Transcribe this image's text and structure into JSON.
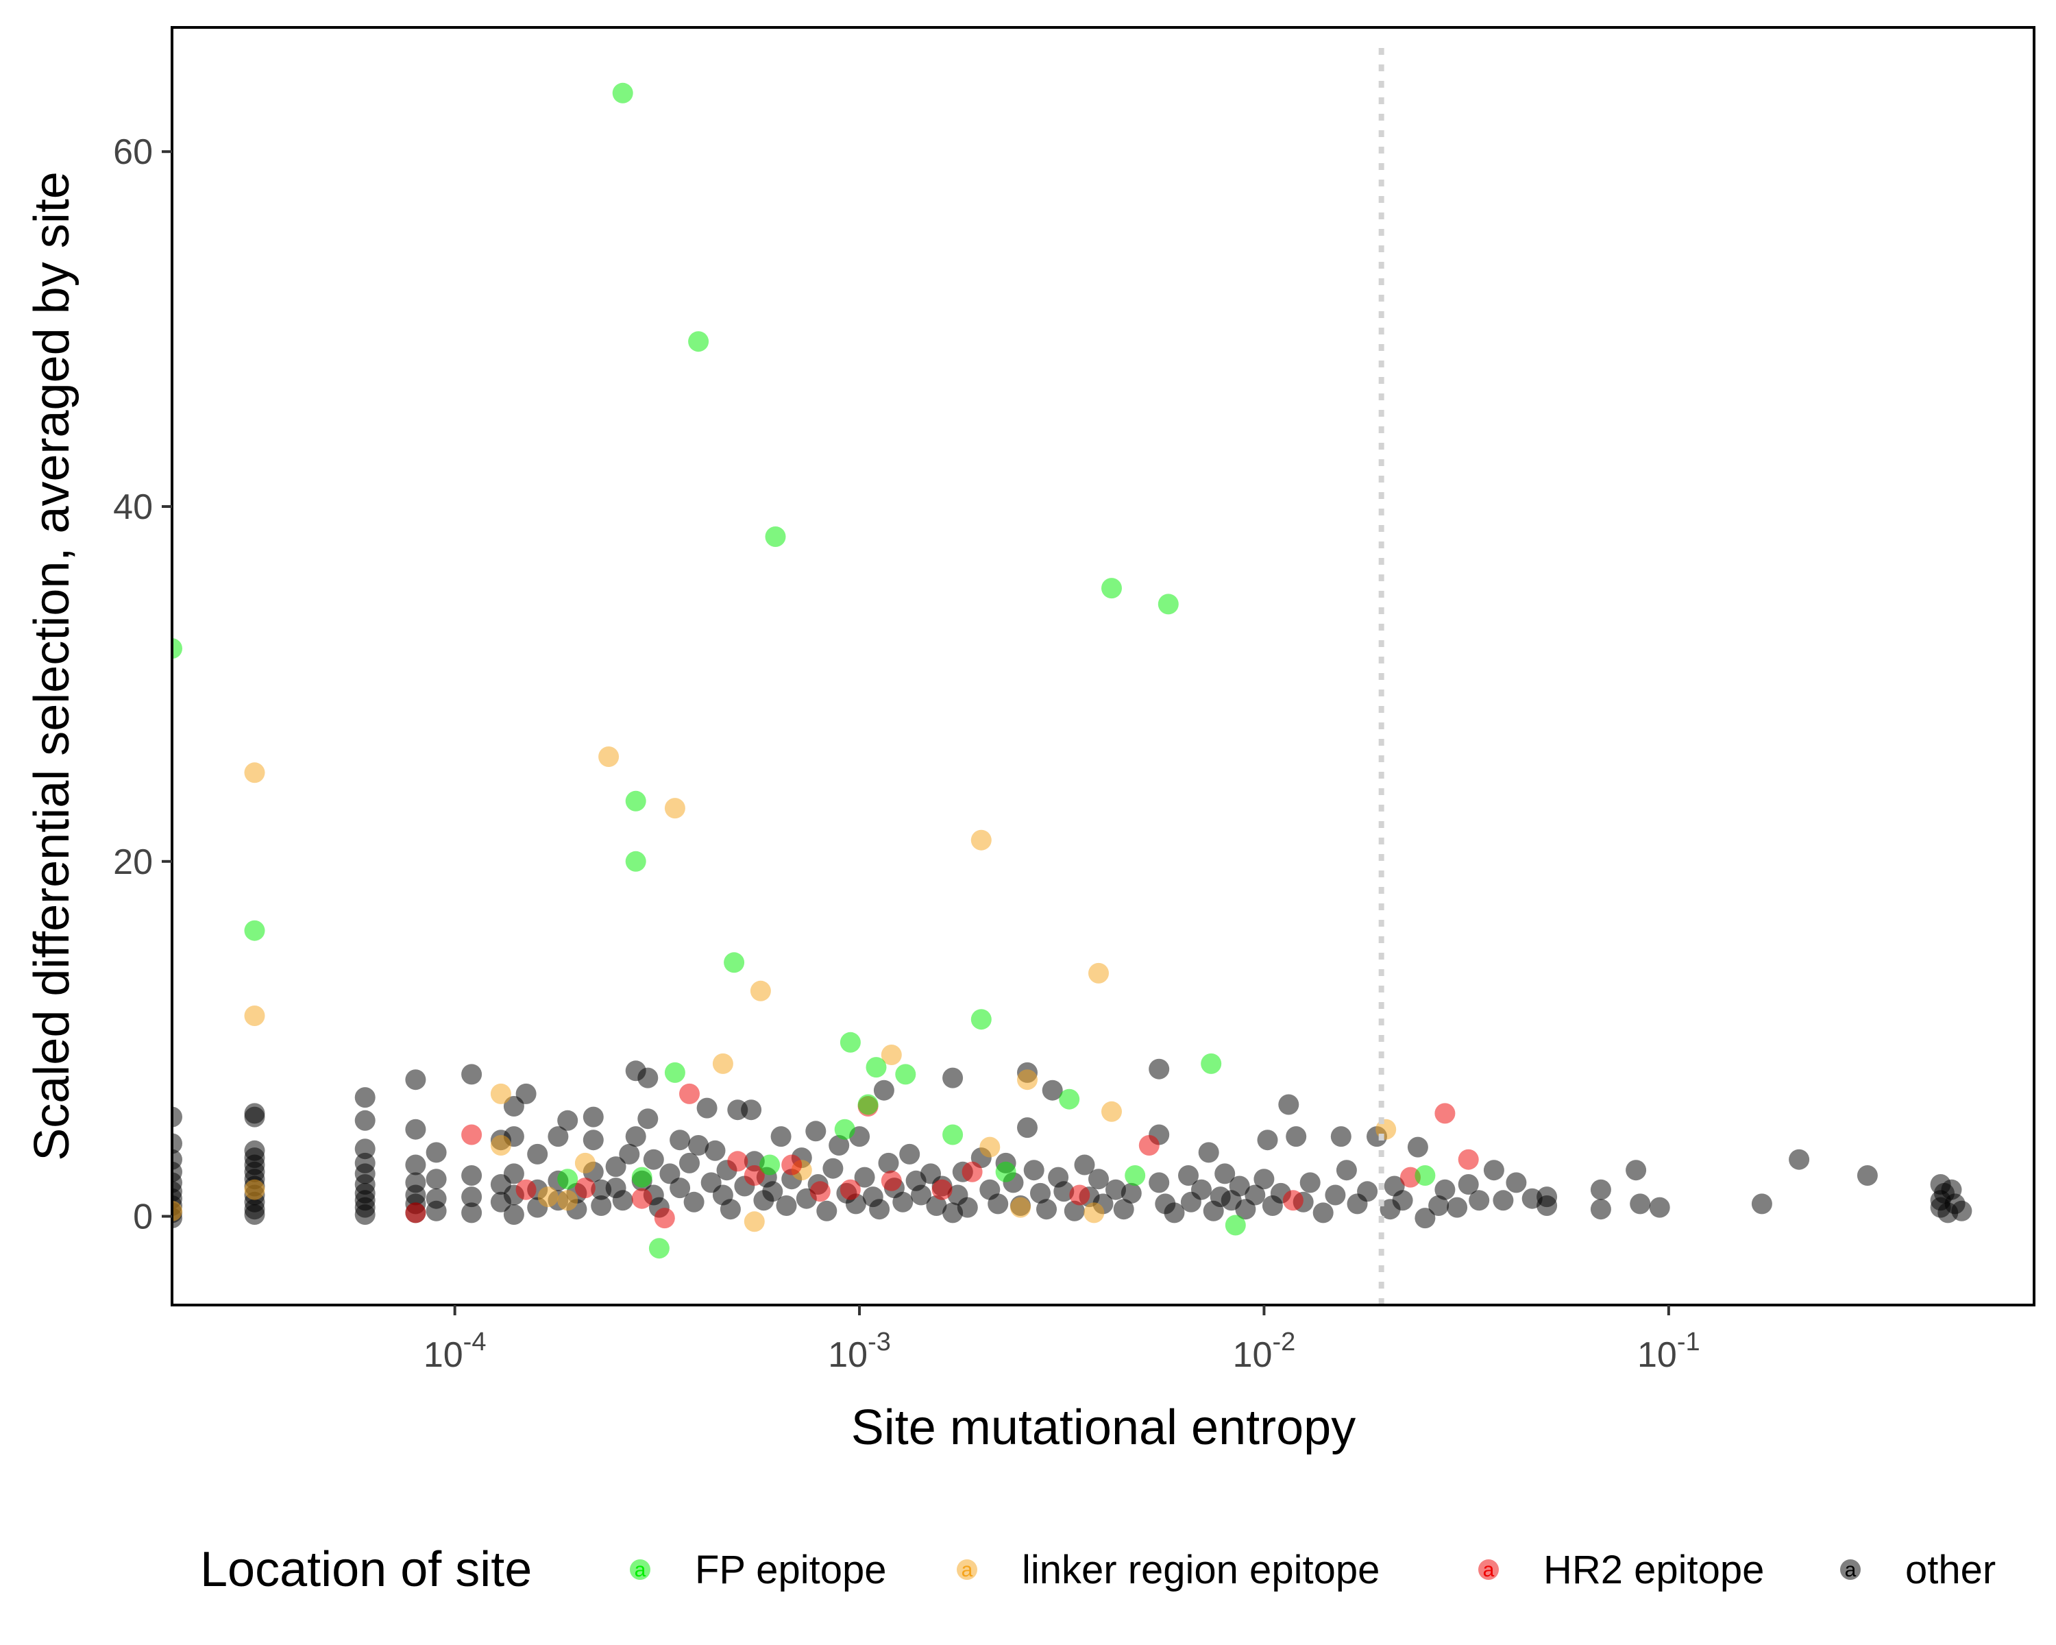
{
  "chart_data": {
    "type": "scatter",
    "xlabel": "Site mutational entropy",
    "ylabel": "Scaled differential selection, averaged by site",
    "x_scale": "log10",
    "xlim": [
      2e-05,
      0.8
    ],
    "ylim": [
      -5,
      67
    ],
    "x_ticks": [
      0.0001,
      0.001,
      0.01,
      0.1
    ],
    "x_tick_labels": [
      {
        "base": "10",
        "exp": "-4"
      },
      {
        "base": "10",
        "exp": "-3"
      },
      {
        "base": "10",
        "exp": "-2"
      },
      {
        "base": "10",
        "exp": "-1"
      }
    ],
    "y_ticks": [
      0,
      20,
      40,
      60
    ],
    "y_tick_labels": [
      "0",
      "20",
      "40",
      "60"
    ],
    "vline": {
      "x": 0.0195,
      "style": "dotted",
      "color": "#d3d3d3"
    },
    "grid": false,
    "legend": {
      "title": "Location of site",
      "position": "bottom",
      "key_glyph": "a"
    },
    "series": [
      {
        "name": "FP epitope",
        "color": "#00ee00",
        "points": [
          [
            0.00026,
            63.3
          ],
          [
            0.0004,
            49.3
          ],
          [
            0.00062,
            38.3
          ],
          [
            0.0042,
            35.4
          ],
          [
            0.0058,
            34.5
          ],
          [
            2e-05,
            32.0
          ],
          [
            0.00028,
            23.4
          ],
          [
            0.00028,
            20.0
          ],
          [
            3.2e-05,
            16.1
          ],
          [
            0.00049,
            14.3
          ],
          [
            0.002,
            11.1
          ],
          [
            0.00095,
            9.8
          ],
          [
            0.00035,
            8.1
          ],
          [
            0.0013,
            8.0
          ],
          [
            0.0074,
            8.6
          ],
          [
            0.0011,
            8.4
          ],
          [
            0.0033,
            6.6
          ],
          [
            0.00105,
            6.3
          ],
          [
            0.00092,
            4.9
          ],
          [
            0.0017,
            4.6
          ],
          [
            0.0006,
            2.9
          ],
          [
            0.00019,
            2.1
          ],
          [
            0.00029,
            2.2
          ],
          [
            0.0023,
            2.5
          ],
          [
            0.0048,
            2.3
          ],
          [
            0.025,
            2.3
          ],
          [
            0.00032,
            -1.8
          ],
          [
            0.0085,
            -0.5
          ]
        ]
      },
      {
        "name": "linker region epitope",
        "color": "#f5a31a",
        "points": [
          [
            3.2e-05,
            25.0
          ],
          [
            0.00024,
            25.9
          ],
          [
            0.00035,
            23.0
          ],
          [
            0.002,
            21.2
          ],
          [
            0.0039,
            13.7
          ],
          [
            0.00057,
            12.7
          ],
          [
            3.2e-05,
            11.3
          ],
          [
            0.0012,
            9.1
          ],
          [
            0.00046,
            8.6
          ],
          [
            0.0026,
            7.7
          ],
          [
            0.00013,
            6.9
          ],
          [
            0.0042,
            5.9
          ],
          [
            0.02,
            4.9
          ],
          [
            0.00013,
            4.0
          ],
          [
            0.0021,
            3.9
          ],
          [
            0.00021,
            3.0
          ],
          [
            2e-05,
            0.3
          ],
          [
            3.2e-05,
            1.5
          ],
          [
            0.00017,
            1.1
          ],
          [
            0.00055,
            -0.3
          ],
          [
            0.0025,
            0.5
          ],
          [
            0.00072,
            2.6
          ],
          [
            0.0038,
            0.2
          ],
          [
            0.00019,
            0.9
          ]
        ]
      },
      {
        "name": "HR2 epitope",
        "color": "#ee0000",
        "points": [
          [
            0.00038,
            6.9
          ],
          [
            0.00011,
            4.6
          ],
          [
            0.0052,
            4.0
          ],
          [
            0.028,
            5.8
          ],
          [
            0.032,
            3.2
          ],
          [
            0.023,
            2.2
          ],
          [
            0.00105,
            6.2
          ],
          [
            0.0005,
            3.1
          ],
          [
            0.00068,
            2.9
          ],
          [
            0.0008,
            1.4
          ],
          [
            0.00095,
            1.5
          ],
          [
            0.0012,
            2.0
          ],
          [
            0.0016,
            1.5
          ],
          [
            0.0019,
            2.5
          ],
          [
            0.00015,
            1.5
          ],
          [
            8e-05,
            0.2
          ],
          [
            0.00029,
            1.0
          ],
          [
            0.00055,
            2.3
          ],
          [
            0.0035,
            1.2
          ],
          [
            0.0118,
            0.9
          ],
          [
            0.00021,
            1.6
          ],
          [
            0.00033,
            -0.1
          ]
        ]
      },
      {
        "name": "other",
        "color": "#000000",
        "points": [
          [
            2e-05,
            5.6
          ],
          [
            2e-05,
            4.1
          ],
          [
            2e-05,
            3.2
          ],
          [
            2e-05,
            2.5
          ],
          [
            2e-05,
            1.9
          ],
          [
            2e-05,
            1.4
          ],
          [
            2e-05,
            1.0
          ],
          [
            2e-05,
            0.6
          ],
          [
            2e-05,
            0.2
          ],
          [
            2e-05,
            -0.1
          ],
          [
            3.2e-05,
            5.8
          ],
          [
            3.2e-05,
            5.6
          ],
          [
            3.2e-05,
            3.7
          ],
          [
            3.2e-05,
            3.3
          ],
          [
            3.2e-05,
            2.9
          ],
          [
            3.2e-05,
            2.5
          ],
          [
            3.2e-05,
            2.1
          ],
          [
            3.2e-05,
            1.7
          ],
          [
            3.2e-05,
            1.2
          ],
          [
            3.2e-05,
            0.8
          ],
          [
            3.2e-05,
            0.4
          ],
          [
            3.2e-05,
            0.1
          ],
          [
            6e-05,
            6.7
          ],
          [
            6e-05,
            5.4
          ],
          [
            6e-05,
            3.8
          ],
          [
            6e-05,
            3.0
          ],
          [
            6e-05,
            2.4
          ],
          [
            6e-05,
            1.8
          ],
          [
            6e-05,
            1.3
          ],
          [
            6e-05,
            0.9
          ],
          [
            6e-05,
            0.5
          ],
          [
            6e-05,
            0.1
          ],
          [
            8e-05,
            7.7
          ],
          [
            8e-05,
            4.9
          ],
          [
            8e-05,
            2.9
          ],
          [
            8e-05,
            1.9
          ],
          [
            8e-05,
            1.2
          ],
          [
            8e-05,
            0.7
          ],
          [
            8e-05,
            0.2
          ],
          [
            9e-05,
            3.6
          ],
          [
            9e-05,
            2.1
          ],
          [
            9e-05,
            1.0
          ],
          [
            9e-05,
            0.3
          ],
          [
            0.00011,
            8.0
          ],
          [
            0.00011,
            2.3
          ],
          [
            0.00011,
            1.1
          ],
          [
            0.00011,
            0.2
          ],
          [
            0.00013,
            4.3
          ],
          [
            0.00013,
            1.8
          ],
          [
            0.00013,
            0.8
          ],
          [
            0.00014,
            6.2
          ],
          [
            0.00014,
            4.5
          ],
          [
            0.00014,
            2.4
          ],
          [
            0.00014,
            1.2
          ],
          [
            0.00014,
            0.1
          ],
          [
            0.00015,
            6.9
          ],
          [
            0.00016,
            3.5
          ],
          [
            0.00016,
            1.5
          ],
          [
            0.00016,
            0.5
          ],
          [
            0.00018,
            4.5
          ],
          [
            0.00018,
            2.0
          ],
          [
            0.00018,
            0.9
          ],
          [
            0.00019,
            5.4
          ],
          [
            0.0002,
            1.3
          ],
          [
            0.0002,
            0.4
          ],
          [
            0.00022,
            5.6
          ],
          [
            0.00022,
            4.3
          ],
          [
            0.00022,
            2.5
          ],
          [
            0.00023,
            1.5
          ],
          [
            0.00023,
            0.6
          ],
          [
            0.00025,
            2.8
          ],
          [
            0.00025,
            1.6
          ],
          [
            0.00026,
            0.9
          ],
          [
            0.00027,
            3.5
          ],
          [
            0.00028,
            8.2
          ],
          [
            0.00028,
            4.5
          ],
          [
            0.00029,
            2.0
          ],
          [
            0.0003,
            5.5
          ],
          [
            0.0003,
            7.8
          ],
          [
            0.00031,
            3.2
          ],
          [
            0.00031,
            1.2
          ],
          [
            0.00032,
            0.5
          ],
          [
            0.00034,
            2.4
          ],
          [
            0.00036,
            4.3
          ],
          [
            0.00036,
            1.6
          ],
          [
            0.00038,
            3.0
          ],
          [
            0.00039,
            0.8
          ],
          [
            0.0004,
            4.0
          ],
          [
            0.00042,
            6.1
          ],
          [
            0.00043,
            1.9
          ],
          [
            0.00044,
            3.7
          ],
          [
            0.00046,
            1.2
          ],
          [
            0.00047,
            2.6
          ],
          [
            0.00048,
            0.4
          ],
          [
            0.0005,
            6.0
          ],
          [
            0.00052,
            1.7
          ],
          [
            0.00054,
            6.0
          ],
          [
            0.00055,
            3.1
          ],
          [
            0.00058,
            0.9
          ],
          [
            0.00059,
            2.2
          ],
          [
            0.00061,
            1.4
          ],
          [
            0.00064,
            4.5
          ],
          [
            0.00066,
            0.6
          ],
          [
            0.00068,
            2.1
          ],
          [
            0.00072,
            3.3
          ],
          [
            0.00074,
            1.0
          ],
          [
            0.00078,
            4.8
          ],
          [
            0.00079,
            1.8
          ],
          [
            0.00083,
            0.3
          ],
          [
            0.00086,
            2.7
          ],
          [
            0.00089,
            4.0
          ],
          [
            0.00093,
            1.3
          ],
          [
            0.00098,
            0.7
          ],
          [
            0.001,
            4.5
          ],
          [
            0.00103,
            2.2
          ],
          [
            0.00108,
            1.1
          ],
          [
            0.00112,
            0.4
          ],
          [
            0.00115,
            7.1
          ],
          [
            0.00118,
            3.0
          ],
          [
            0.00122,
            1.6
          ],
          [
            0.00128,
            0.8
          ],
          [
            0.00133,
            3.5
          ],
          [
            0.00138,
            2.0
          ],
          [
            0.00142,
            1.2
          ],
          [
            0.0015,
            2.4
          ],
          [
            0.00155,
            0.6
          ],
          [
            0.0016,
            1.7
          ],
          [
            0.0017,
            7.8
          ],
          [
            0.0017,
            0.2
          ],
          [
            0.00175,
            1.2
          ],
          [
            0.0018,
            2.5
          ],
          [
            0.00185,
            0.5
          ],
          [
            0.002,
            3.3
          ],
          [
            0.0021,
            1.5
          ],
          [
            0.0022,
            0.7
          ],
          [
            0.0023,
            3.0
          ],
          [
            0.0024,
            1.9
          ],
          [
            0.0025,
            0.6
          ],
          [
            0.0026,
            5.0
          ],
          [
            0.0026,
            8.1
          ],
          [
            0.0027,
            2.6
          ],
          [
            0.0028,
            1.3
          ],
          [
            0.0029,
            0.4
          ],
          [
            0.003,
            7.1
          ],
          [
            0.0031,
            2.2
          ],
          [
            0.0032,
            1.4
          ],
          [
            0.0034,
            0.3
          ],
          [
            0.0036,
            2.9
          ],
          [
            0.0037,
            1.1
          ],
          [
            0.0039,
            2.1
          ],
          [
            0.004,
            0.7
          ],
          [
            0.0043,
            1.5
          ],
          [
            0.0045,
            0.4
          ],
          [
            0.0047,
            1.3
          ],
          [
            0.0055,
            8.3
          ],
          [
            0.0055,
            4.6
          ],
          [
            0.0055,
            1.9
          ],
          [
            0.0057,
            0.7
          ],
          [
            0.006,
            0.2
          ],
          [
            0.0065,
            2.3
          ],
          [
            0.0066,
            0.8
          ],
          [
            0.007,
            1.5
          ],
          [
            0.0073,
            3.6
          ],
          [
            0.0075,
            0.3
          ],
          [
            0.0078,
            1.1
          ],
          [
            0.008,
            2.4
          ],
          [
            0.0083,
            0.9
          ],
          [
            0.0087,
            1.7
          ],
          [
            0.009,
            0.4
          ],
          [
            0.0095,
            1.2
          ],
          [
            0.01,
            2.1
          ],
          [
            0.0102,
            4.3
          ],
          [
            0.0105,
            0.6
          ],
          [
            0.011,
            1.3
          ],
          [
            0.0115,
            6.3
          ],
          [
            0.012,
            4.5
          ],
          [
            0.0125,
            0.8
          ],
          [
            0.013,
            1.9
          ],
          [
            0.014,
            0.2
          ],
          [
            0.015,
            1.2
          ],
          [
            0.0155,
            4.5
          ],
          [
            0.016,
            2.6
          ],
          [
            0.017,
            0.7
          ],
          [
            0.018,
            1.4
          ],
          [
            0.019,
            4.5
          ],
          [
            0.0205,
            0.4
          ],
          [
            0.021,
            1.7
          ],
          [
            0.022,
            0.9
          ],
          [
            0.024,
            3.9
          ],
          [
            0.025,
            -0.1
          ],
          [
            0.027,
            0.6
          ],
          [
            0.028,
            1.5
          ],
          [
            0.03,
            0.5
          ],
          [
            0.032,
            1.8
          ],
          [
            0.034,
            0.9
          ],
          [
            0.037,
            2.6
          ],
          [
            0.039,
            0.9
          ],
          [
            0.042,
            1.9
          ],
          [
            0.046,
            1.0
          ],
          [
            0.05,
            0.6
          ],
          [
            0.05,
            1.1
          ],
          [
            0.068,
            1.5
          ],
          [
            0.068,
            0.4
          ],
          [
            0.083,
            2.6
          ],
          [
            0.085,
            0.7
          ],
          [
            0.095,
            0.5
          ],
          [
            0.17,
            0.7
          ],
          [
            0.21,
            3.2
          ],
          [
            0.31,
            2.3
          ],
          [
            0.47,
            1.8
          ],
          [
            0.47,
            0.9
          ],
          [
            0.47,
            0.5
          ],
          [
            0.48,
            1.3
          ],
          [
            0.49,
            0.2
          ],
          [
            0.5,
            1.5
          ],
          [
            0.51,
            0.7
          ],
          [
            0.53,
            0.3
          ]
        ]
      }
    ]
  }
}
